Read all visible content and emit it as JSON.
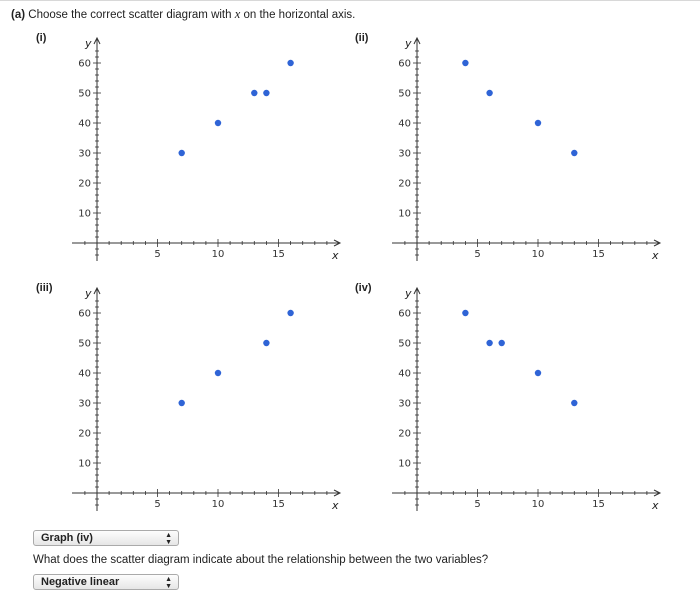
{
  "question": {
    "prefix": "(a)",
    "text_before": "Choose the correct scatter diagram with",
    "var": "x",
    "text_after": "on the horizontal axis."
  },
  "axis_labels": {
    "x": "x",
    "y": "y"
  },
  "chart_data": [
    {
      "type": "scatter",
      "label": "(i)",
      "x": [
        7,
        10,
        13,
        14,
        16
      ],
      "y": [
        30,
        40,
        50,
        50,
        60
      ],
      "xlim": [
        -2,
        20
      ],
      "ylim": [
        -5,
        68
      ],
      "xticks": [
        5,
        10,
        15
      ],
      "yticks": [
        10,
        20,
        30,
        40,
        50,
        60
      ],
      "xlabel": "x",
      "ylabel": "y"
    },
    {
      "type": "scatter",
      "label": "(ii)",
      "x": [
        4,
        6,
        10,
        13
      ],
      "y": [
        60,
        50,
        40,
        30
      ],
      "xlim": [
        -2,
        20
      ],
      "ylim": [
        -5,
        68
      ],
      "xticks": [
        5,
        10,
        15
      ],
      "yticks": [
        10,
        20,
        30,
        40,
        50,
        60
      ],
      "xlabel": "x",
      "ylabel": "y"
    },
    {
      "type": "scatter",
      "label": "(iii)",
      "x": [
        7,
        10,
        14,
        16
      ],
      "y": [
        30,
        40,
        50,
        60
      ],
      "xlim": [
        -2,
        20
      ],
      "ylim": [
        -5,
        68
      ],
      "xticks": [
        5,
        10,
        15
      ],
      "yticks": [
        10,
        20,
        30,
        40,
        50,
        60
      ],
      "xlabel": "x",
      "ylabel": "y"
    },
    {
      "type": "scatter",
      "label": "(iv)",
      "x": [
        4,
        6,
        7,
        10,
        13
      ],
      "y": [
        60,
        50,
        50,
        40,
        30
      ],
      "xlim": [
        -2,
        20
      ],
      "ylim": [
        -5,
        68
      ],
      "xticks": [
        5,
        10,
        15
      ],
      "yticks": [
        10,
        20,
        30,
        40,
        50,
        60
      ],
      "xlabel": "x",
      "ylabel": "y"
    }
  ],
  "graph_select": {
    "value": "Graph (iv)"
  },
  "question2": "What does the scatter diagram indicate about the relationship between the two variables?",
  "relationship_select": {
    "value": "Negative linear"
  },
  "colors": {
    "point": "#2f64d6",
    "axis": "#333333"
  }
}
